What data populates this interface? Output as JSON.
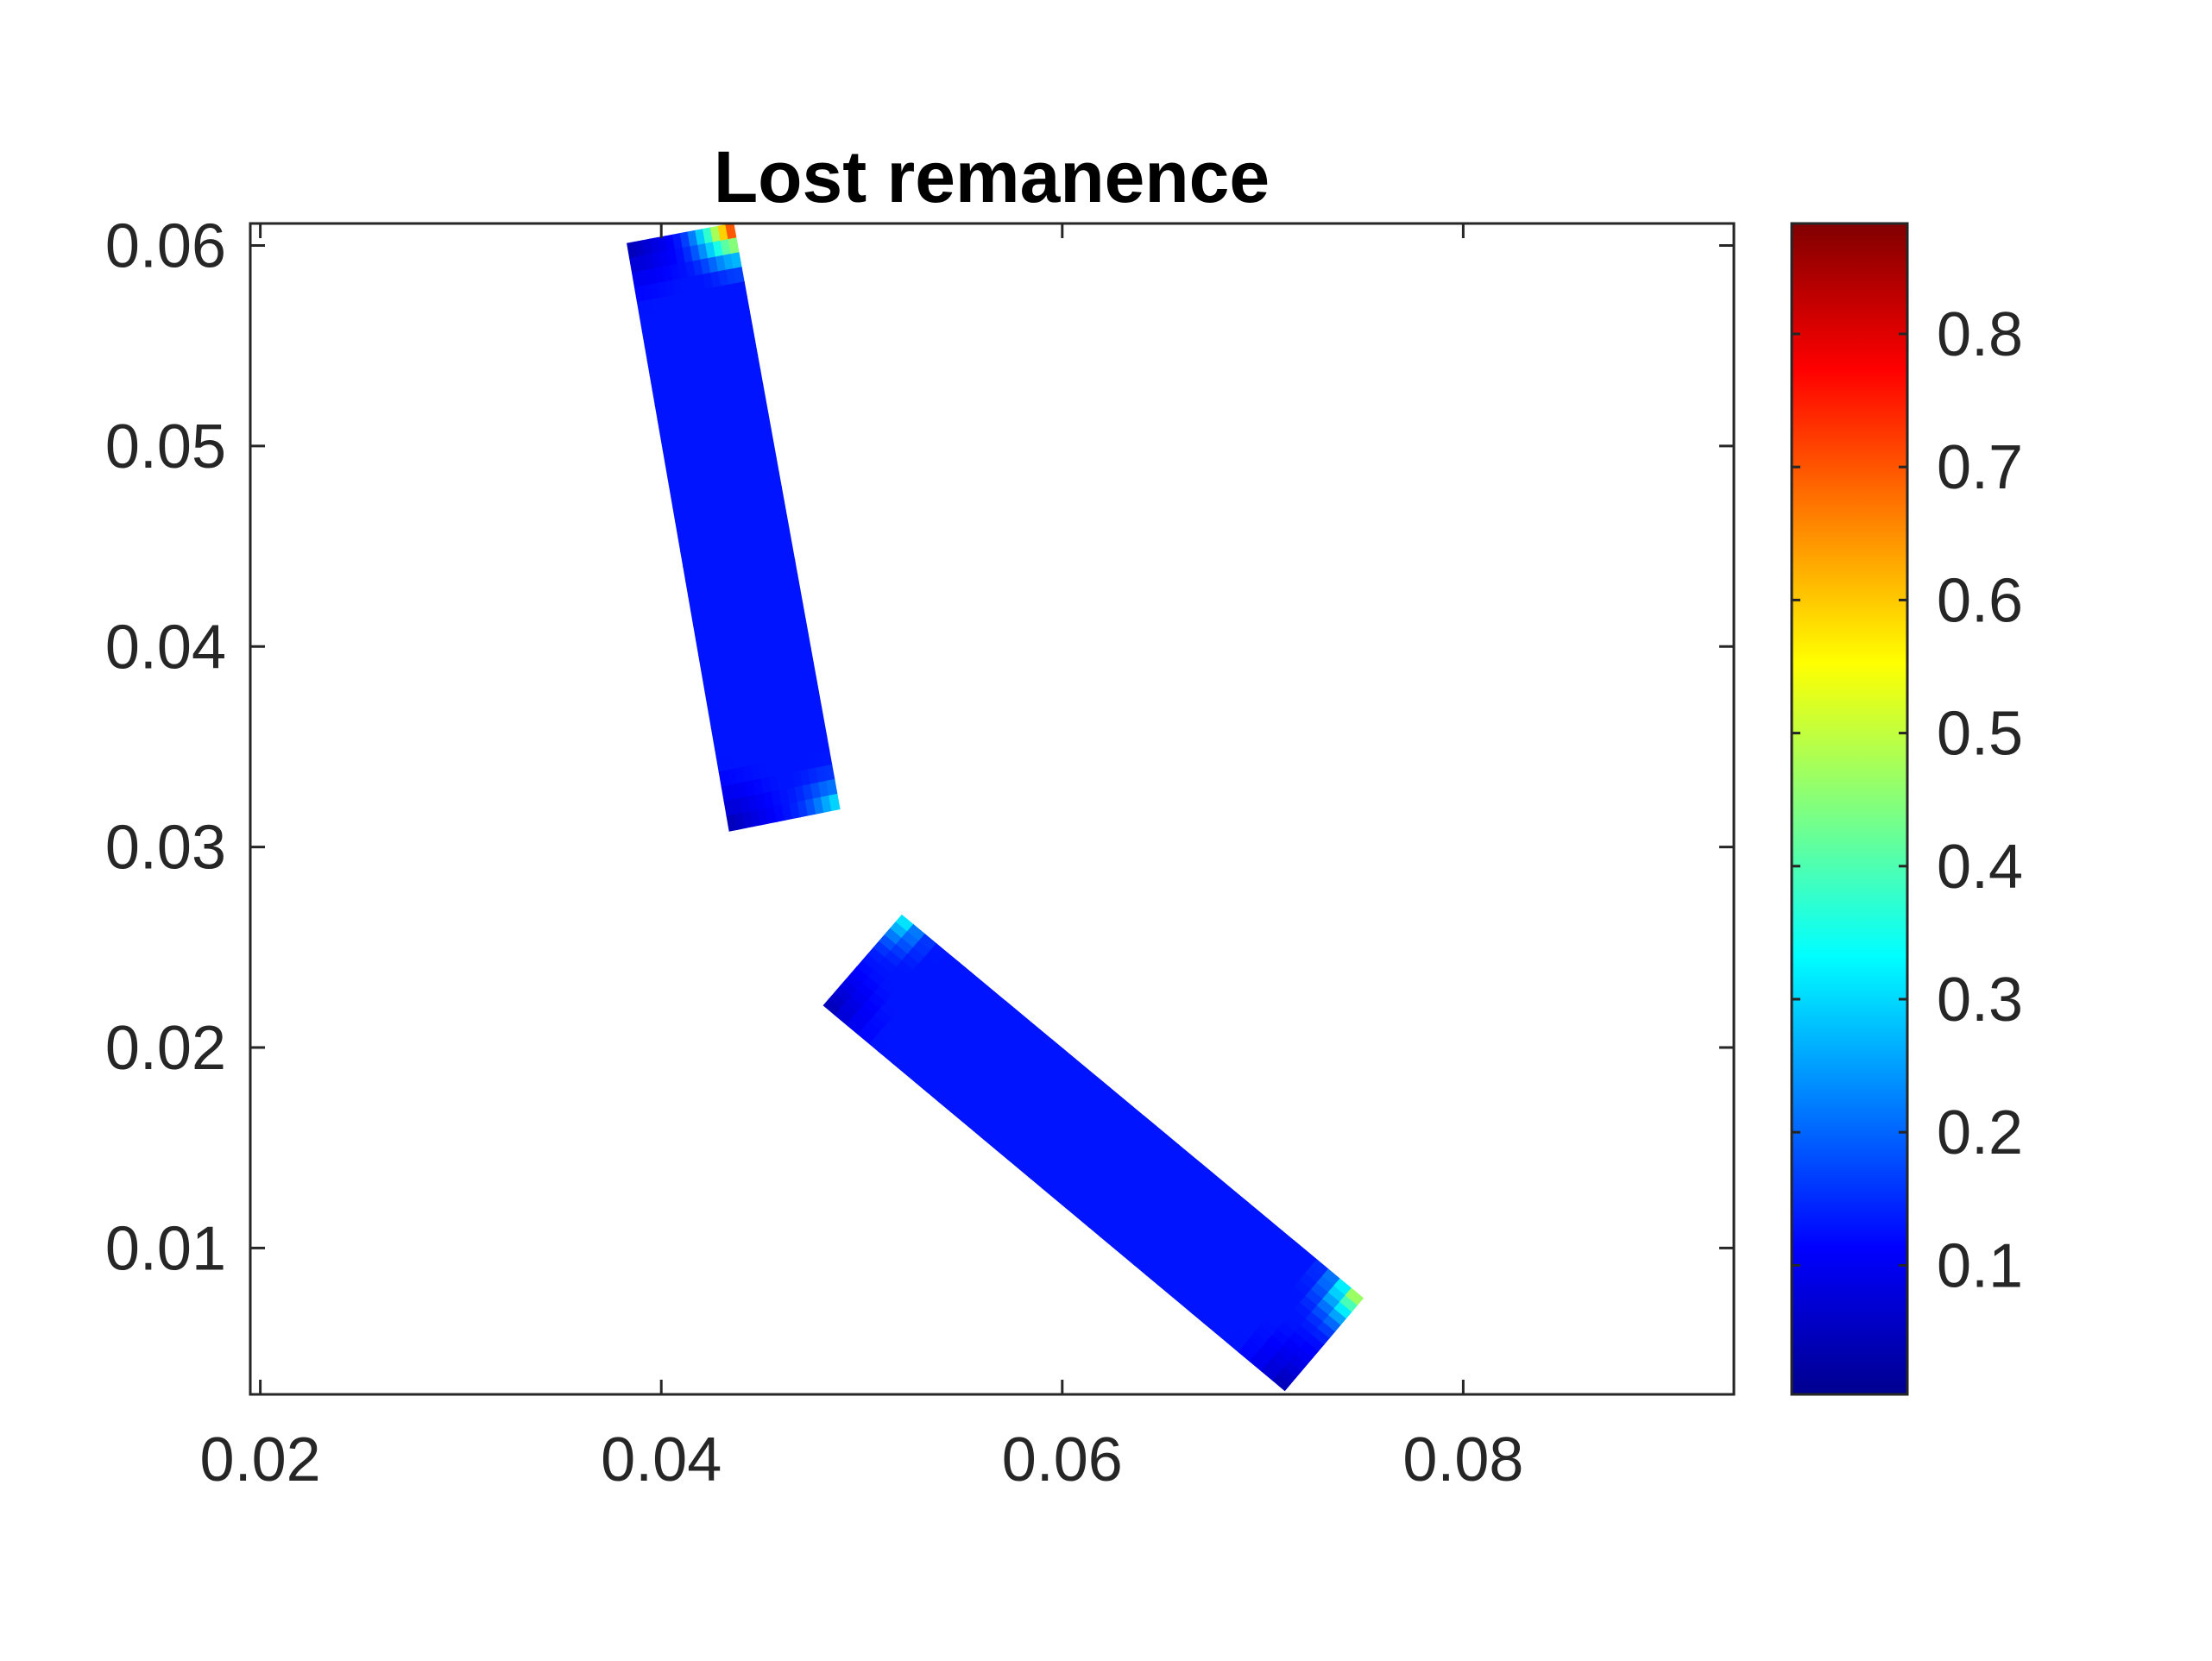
{
  "chart_data": {
    "type": "heatmap",
    "title": "Lost remanence",
    "xlabel": "",
    "ylabel": "",
    "xlim": [
      0.0195,
      0.0935
    ],
    "ylim": [
      0.0027,
      0.0611
    ],
    "x_ticks": [
      "0.02",
      "0.04",
      "0.06",
      "0.08"
    ],
    "x_tick_values": [
      0.02,
      0.04,
      0.06,
      0.08
    ],
    "y_ticks": [
      "0.01",
      "0.02",
      "0.03",
      "0.04",
      "0.05",
      "0.06"
    ],
    "y_tick_values": [
      0.01,
      0.02,
      0.03,
      0.04,
      0.05,
      0.06
    ],
    "grid": false,
    "colormap": "jet",
    "colorbar": {
      "range": [
        0.003,
        0.883
      ],
      "ticks": [
        "0.1",
        "0.2",
        "0.3",
        "0.4",
        "0.5",
        "0.6",
        "0.7",
        "0.8"
      ],
      "tick_values": [
        0.1,
        0.2,
        0.3,
        0.4,
        0.5,
        0.6,
        0.7,
        0.8
      ],
      "colors": [
        "#00008f",
        "#0000ff",
        "#00ffff",
        "#ffff00",
        "#ff0000",
        "#800000"
      ]
    },
    "regions": [
      {
        "id": "magnet-upper",
        "corners": [
          [
            0.0383,
            0.0601
          ],
          [
            0.0436,
            0.0611
          ],
          [
            0.0489,
            0.0319
          ],
          [
            0.0434,
            0.0308
          ]
        ],
        "base_value": 0.13,
        "hotspots": [
          {
            "at": [
              0.0436,
              0.0611
            ],
            "value": 0.88,
            "reach": 0.0035
          },
          {
            "at": [
              0.0489,
              0.0319
            ],
            "value": 0.36,
            "reach": 0.003
          }
        ],
        "coldspots": [
          {
            "at": [
              0.0383,
              0.0601
            ],
            "value": 0.03,
            "reach": 0.0035
          },
          {
            "at": [
              0.0434,
              0.0308
            ],
            "value": 0.03,
            "reach": 0.0035
          }
        ]
      },
      {
        "id": "magnet-lower",
        "corners": [
          [
            0.0481,
            0.0221
          ],
          [
            0.052,
            0.0266
          ],
          [
            0.075,
            0.0075
          ],
          [
            0.0711,
            0.0029
          ]
        ],
        "base_value": 0.13,
        "hotspots": [
          {
            "at": [
              0.052,
              0.0266
            ],
            "value": 0.38,
            "reach": 0.003
          },
          {
            "at": [
              0.075,
              0.0075
            ],
            "value": 0.58,
            "reach": 0.0035
          }
        ],
        "coldspots": [
          {
            "at": [
              0.0481,
              0.0221
            ],
            "value": 0.03,
            "reach": 0.0035
          },
          {
            "at": [
              0.0711,
              0.0029
            ],
            "value": 0.03,
            "reach": 0.0035
          }
        ]
      }
    ]
  }
}
